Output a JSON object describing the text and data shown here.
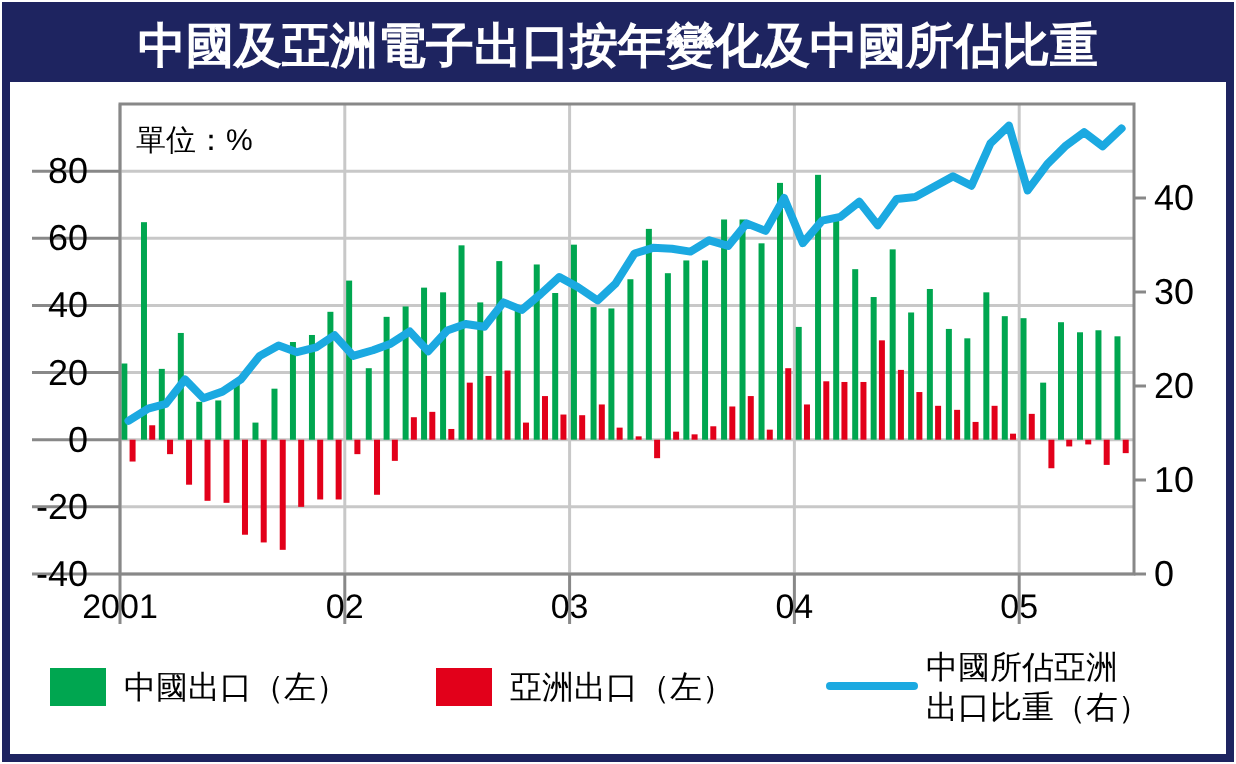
{
  "chart_data": {
    "type": "bar",
    "title": "中國及亞洲電子出口按年變化及中國所佔比重",
    "ylabel": "單位：%",
    "x": [
      "2001-01-15",
      "2001-02-15",
      "2001-03-15",
      "2001-04-15",
      "2001-05-15",
      "2001-06-15",
      "2001-07-15",
      "2001-08-15",
      "2001-09-15",
      "2001-10-15",
      "2001-11-15",
      "2001-12-15",
      "2002-01-15",
      "2002-02-15",
      "2002-03-15",
      "2002-04-15",
      "2002-05-15",
      "2002-06-15",
      "2002-07-15",
      "2002-08-15",
      "2002-09-15",
      "2002-10-15",
      "2002-11-15",
      "2002-12-15",
      "2003-01-15",
      "2003-02-15",
      "2003-03-15",
      "2003-04-15",
      "2003-05-15",
      "2003-06-15",
      "2003-07-15",
      "2003-08-15",
      "2003-09-15",
      "2003-10-15",
      "2003-11-15",
      "2003-12-15",
      "2004-01-15",
      "2004-02-15",
      "2004-03-15",
      "2004-04-15",
      "2004-05-15",
      "2004-06-15",
      "2004-07-15",
      "2004-08-15",
      "2004-09-15",
      "2004-10-15",
      "2004-11-15",
      "2004-12-15",
      "2005-01-15",
      "2005-02-15",
      "2005-03-15",
      "2005-04-15",
      "2005-05-15",
      "2005-06-15"
    ],
    "series": [
      {
        "name": "中國出口（左）",
        "color": "#00a650",
        "values": [
          22.7,
          64.8,
          21.1,
          31.8,
          11.3,
          11.7,
          17.8,
          5.1,
          15.2,
          29.1,
          31.2,
          38.1,
          47.4,
          21.3,
          36.6,
          39.7,
          45.3,
          43.9,
          57.9,
          40.9,
          53.2,
          38.7,
          52.2,
          43.7,
          58.1,
          39.5,
          39.1,
          47.8,
          62.8,
          49.6,
          53.4,
          53.4,
          65.6,
          65.6,
          58.5,
          76.5,
          33.6,
          78.9,
          65.2,
          50.8,
          42.5,
          56.7,
          37.9,
          44.9,
          33.0,
          30.2,
          43.9,
          36.8,
          36.2,
          17.0,
          35.0,
          32.0,
          32.6,
          30.8
        ]
      },
      {
        "name": "亞洲出口（左）",
        "color": "#e2001a",
        "values": [
          -6.5,
          4.3,
          -4.3,
          -13.4,
          -18.2,
          -18.8,
          -28.3,
          -30.6,
          -32.8,
          -20.0,
          -17.8,
          -17.8,
          -4.3,
          -16.4,
          -6.3,
          6.7,
          8.3,
          3.2,
          17.0,
          19.0,
          20.6,
          5.1,
          13.0,
          7.5,
          7.3,
          10.5,
          3.6,
          1.0,
          -5.5,
          2.4,
          1.6,
          4.0,
          9.9,
          13.0,
          3.0,
          21.3,
          10.5,
          17.4,
          17.2,
          17.2,
          29.6,
          20.8,
          14.2,
          10.1,
          8.9,
          5.3,
          10.1,
          1.8,
          7.7,
          -8.5,
          -2.0,
          -1.4,
          -7.5,
          -4.0
        ]
      },
      {
        "name": "中國所佔亞洲出口比重（右）",
        "type": "line",
        "axis": "y2",
        "color": "#1ba9e1",
        "values": [
          16.3,
          17.6,
          18.1,
          20.7,
          18.7,
          19.4,
          20.7,
          23.2,
          24.3,
          23.6,
          24.1,
          25.4,
          23.2,
          23.8,
          24.5,
          25.8,
          23.7,
          25.9,
          26.6,
          26.3,
          28.9,
          28.1,
          29.8,
          31.6,
          30.5,
          29.1,
          30.9,
          34.1,
          34.7,
          34.6,
          34.3,
          35.5,
          34.9,
          37.3,
          36.5,
          40.0,
          35.2,
          37.6,
          38.0,
          39.6,
          37.1,
          39.9,
          40.1,
          41.2,
          42.3,
          41.3,
          45.8,
          47.7,
          40.8,
          43.6,
          45.5,
          47.0,
          45.5,
          47.4
        ]
      }
    ],
    "xlim": [
      "2001-01",
      "2005-07-05"
    ],
    "xticks": [
      {
        "value": "2001-01",
        "label": "2001"
      },
      {
        "value": "2002-01",
        "label": "02"
      },
      {
        "value": "2003-01",
        "label": "03"
      },
      {
        "value": "2004-01",
        "label": "04"
      },
      {
        "value": "2005-01",
        "label": "05"
      }
    ],
    "ylim": [
      -40,
      100
    ],
    "yticks": [
      -40,
      -20,
      0,
      20,
      40,
      60,
      80
    ],
    "y2lim": [
      0,
      50
    ],
    "y2ticks": [
      0,
      10,
      20,
      30,
      40
    ],
    "grid": true,
    "legend": "bottom",
    "line_style": "solid",
    "marker": "none"
  }
}
